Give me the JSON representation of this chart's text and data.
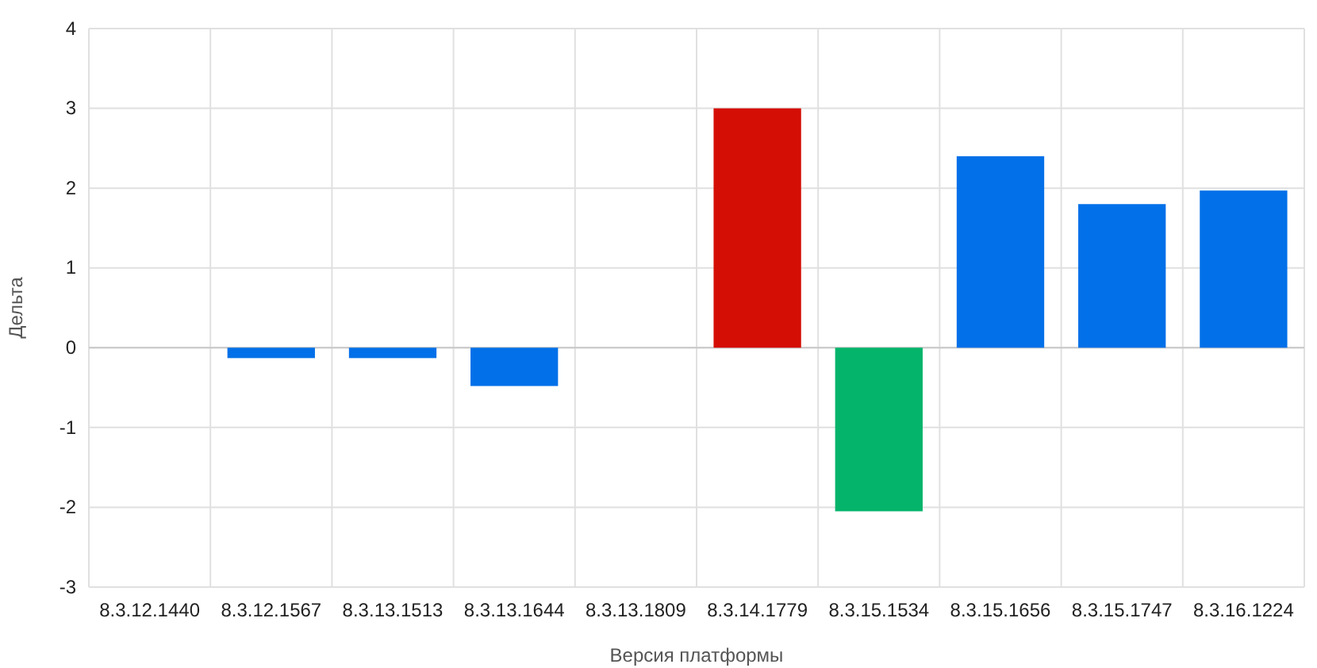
{
  "chart_data": {
    "type": "bar",
    "xlabel": "Версия платформы",
    "ylabel": "Дельта",
    "categories": [
      "8.3.12.1440",
      "8.3.12.1567",
      "8.3.13.1513",
      "8.3.13.1644",
      "8.3.13.1809",
      "8.3.14.1779",
      "8.3.15.1534",
      "8.3.15.1656",
      "8.3.15.1747",
      "8.3.16.1224"
    ],
    "values": [
      0,
      -0.13,
      -0.13,
      -0.48,
      0,
      3.0,
      -2.05,
      2.4,
      1.8,
      1.97
    ],
    "colors": [
      "#0270e8",
      "#0270e8",
      "#0270e8",
      "#0270e8",
      "#0270e8",
      "#d40e05",
      "#04b46a",
      "#0270e8",
      "#0270e8",
      "#0270e8"
    ],
    "ylim": [
      -3,
      4
    ],
    "yticks": [
      -3,
      -2,
      -1,
      0,
      1,
      2,
      3,
      4
    ],
    "grid": true
  }
}
